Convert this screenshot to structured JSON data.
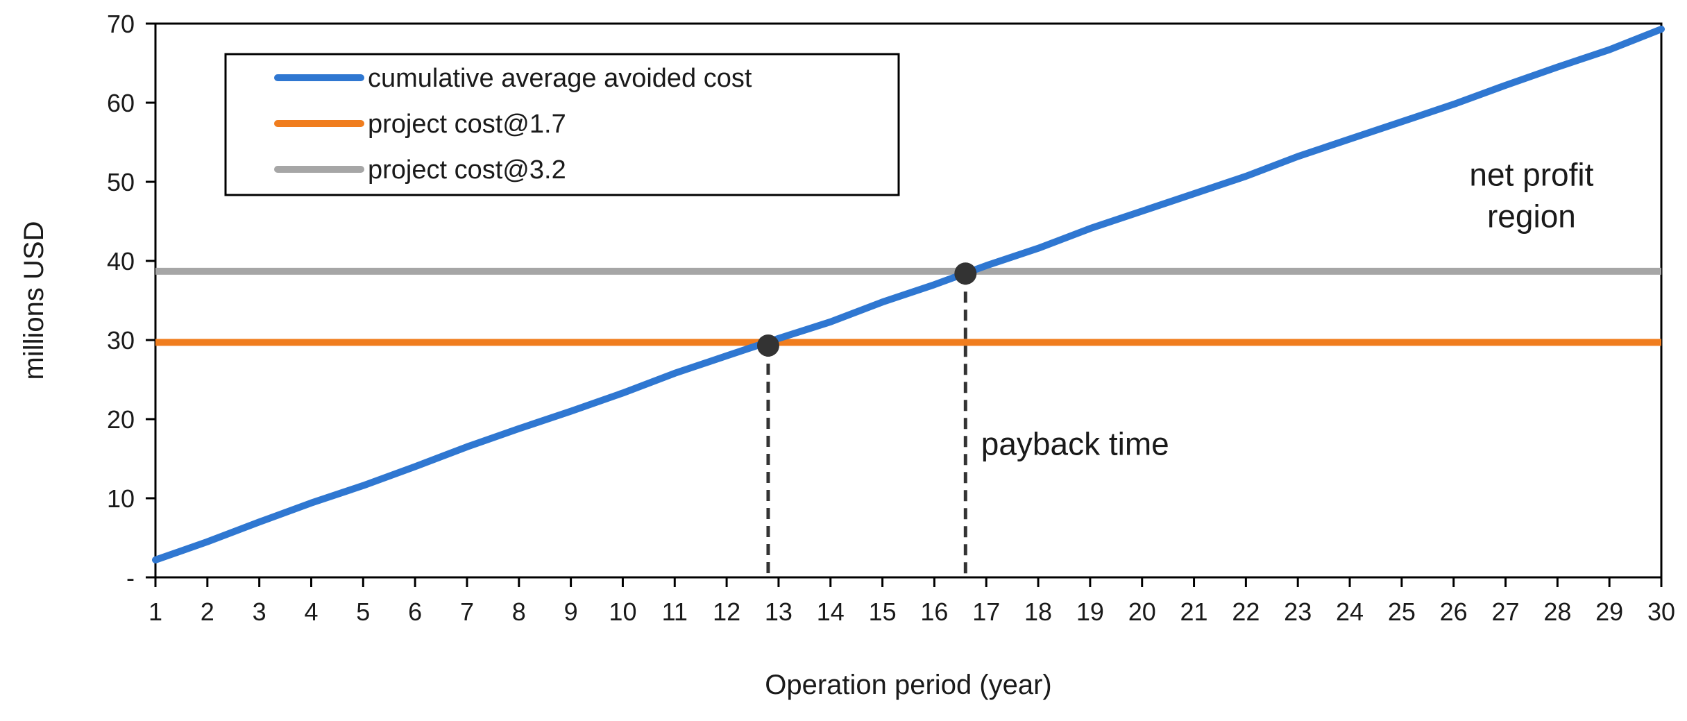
{
  "chart_data": {
    "type": "line",
    "xlabel": "Operation period (year)",
    "ylabel": "millions USD",
    "xlim": [
      1,
      30
    ],
    "ylim": [
      0,
      70
    ],
    "x_ticks": [
      1,
      2,
      3,
      4,
      5,
      6,
      7,
      8,
      9,
      10,
      11,
      12,
      13,
      14,
      15,
      16,
      17,
      18,
      19,
      20,
      21,
      22,
      23,
      24,
      25,
      26,
      27,
      28,
      29,
      30
    ],
    "y_ticks": [
      0,
      10,
      20,
      30,
      40,
      50,
      60,
      70
    ],
    "y_tick_labels": [
      "-",
      "10",
      "20",
      "30",
      "40",
      "50",
      "60",
      "70"
    ],
    "grid": false,
    "legend_position": "top-left",
    "series": [
      {
        "name": "cumulative average avoided cost",
        "color": "#2F77D1",
        "kind": "curve",
        "x": [
          1,
          2,
          3,
          4,
          5,
          6,
          7,
          8,
          9,
          10,
          11,
          12,
          13,
          14,
          15,
          16,
          17,
          18,
          19,
          20,
          21,
          22,
          23,
          24,
          25,
          26,
          27,
          28,
          29,
          30
        ],
        "values": [
          2.2,
          4.5,
          7.0,
          9.4,
          11.6,
          14.0,
          16.5,
          18.8,
          21.0,
          23.3,
          25.8,
          28.0,
          30.2,
          32.3,
          34.8,
          37.0,
          39.4,
          41.6,
          44.1,
          46.3,
          48.5,
          50.7,
          53.2,
          55.4,
          57.6,
          59.8,
          62.2,
          64.5,
          66.7,
          69.3
        ]
      },
      {
        "name": "project cost@1.7",
        "color": "#F07D1E",
        "kind": "horizontal",
        "value": 29.7
      },
      {
        "name": "project cost@3.2",
        "color": "#A6A6A6",
        "kind": "horizontal",
        "value": 38.7
      }
    ],
    "markers": [
      {
        "x": 12.8,
        "y": 29.3,
        "color": "#333333"
      },
      {
        "x": 16.6,
        "y": 38.4,
        "color": "#333333"
      }
    ],
    "vertical_dashed_lines": [
      12.8,
      16.6
    ],
    "annotations": [
      {
        "id": "net-profit",
        "lines": [
          "net profit",
          "region"
        ],
        "x": 27.5,
        "y": 49.5
      },
      {
        "id": "payback",
        "lines": [
          "payback time"
        ],
        "x": 16.9,
        "y": 15.5
      }
    ]
  }
}
